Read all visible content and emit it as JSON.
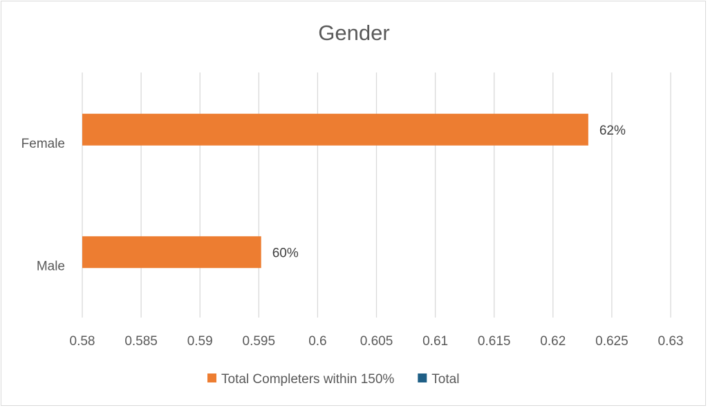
{
  "chart_data": {
    "type": "bar",
    "orientation": "horizontal",
    "title": "Gender",
    "categories": [
      "Female",
      "Male"
    ],
    "series": [
      {
        "name": "Total Completers within 150%",
        "color": "#ED7D31",
        "values": [
          0.623,
          0.5952
        ],
        "labels": [
          "62%",
          "60%"
        ]
      },
      {
        "name": "Total",
        "color": "#1F5F86",
        "values": [
          null,
          null
        ],
        "labels": []
      }
    ],
    "xlim": [
      0.58,
      0.63
    ],
    "xticks": [
      "0.58",
      "0.585",
      "0.59",
      "0.595",
      "0.6",
      "0.605",
      "0.61",
      "0.615",
      "0.62",
      "0.625",
      "0.63"
    ],
    "grid": true,
    "legend": "bottom"
  }
}
